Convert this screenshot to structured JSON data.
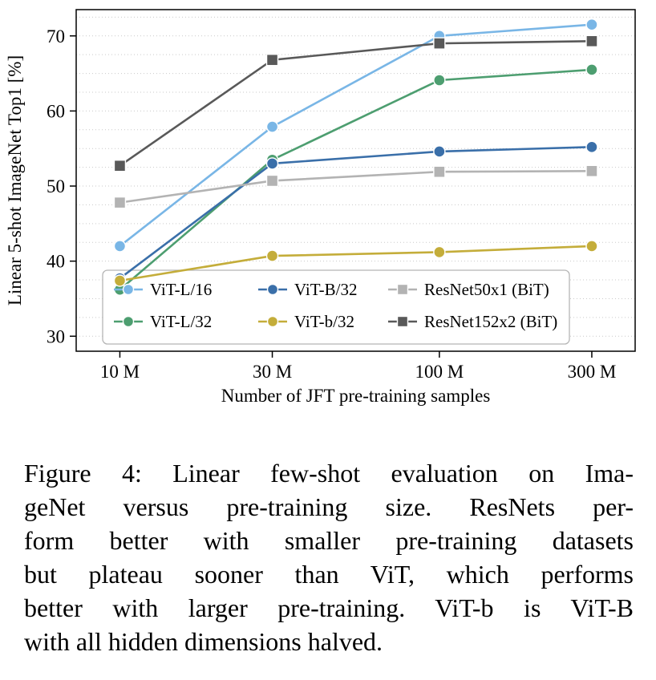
{
  "figure": {
    "caption_lines": [
      "Figure 4: Linear few-shot evaluation on Ima-",
      "geNet versus pre-training size. ResNets per-",
      "form better with smaller pre-training datasets",
      "but plateau sooner than ViT, which performs",
      "better with larger pre-training. ViT-b is ViT-B",
      "with all hidden dimensions halved."
    ]
  },
  "chart_data": {
    "type": "line",
    "x": [
      10000000,
      30000000,
      100000000,
      300000000
    ],
    "x_tick_labels": [
      "10 M",
      "30 M",
      "100 M",
      "300 M"
    ],
    "xlabel": "Number of JFT pre-training samples",
    "ylabel": "Linear 5-shot ImageNet Top1 [%]",
    "xscale": "log",
    "xlim": [
      7300000,
      410000000
    ],
    "ylim": [
      28,
      73.5
    ],
    "yticks": [
      30,
      40,
      50,
      60,
      70
    ],
    "minor_grid_step": 2.5,
    "grid_on": true,
    "grid_color": "#c9c9c9",
    "legend_position": "lower-left-inside",
    "series": [
      {
        "name": "ViT-L/16",
        "color": "#79b6e6",
        "marker": "circle",
        "values": [
          42.0,
          57.9,
          70.0,
          71.5
        ]
      },
      {
        "name": "ViT-L/32",
        "color": "#4d9e70",
        "marker": "circle",
        "values": [
          36.2,
          53.5,
          64.1,
          65.5
        ]
      },
      {
        "name": "ViT-B/32",
        "color": "#3a6fa9",
        "marker": "circle",
        "values": [
          37.7,
          53.0,
          54.6,
          55.2
        ]
      },
      {
        "name": "ViT-b/32",
        "color": "#c4ad3a",
        "marker": "circle",
        "values": [
          37.4,
          40.7,
          41.2,
          42.0
        ]
      },
      {
        "name": "ResNet50x1 (BiT)",
        "color": "#b3b3b3",
        "marker": "square",
        "values": [
          47.8,
          50.7,
          51.9,
          52.0
        ]
      },
      {
        "name": "ResNet152x2 (BiT)",
        "color": "#595959",
        "marker": "square",
        "values": [
          52.7,
          66.8,
          69.0,
          69.3
        ]
      }
    ]
  }
}
